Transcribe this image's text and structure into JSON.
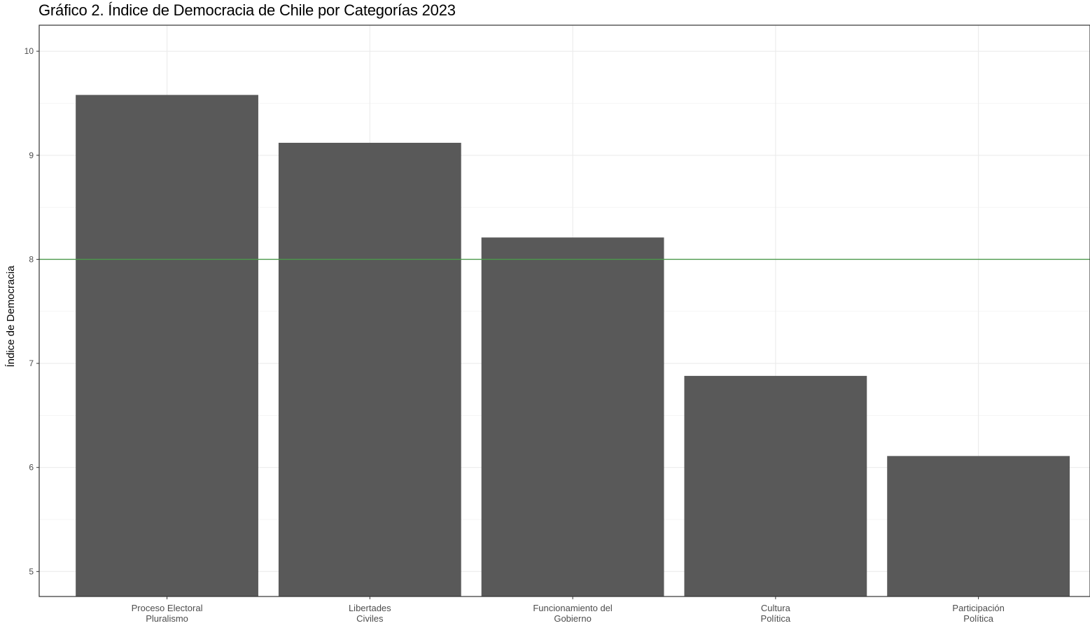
{
  "chart_data": {
    "type": "bar",
    "title": "Gráfico 2. Índice de Democracia de Chile por Categorías 2023",
    "xlabel": "",
    "ylabel": "Índice de Democracia",
    "categories": [
      [
        "Proceso Electoral",
        "Pluralismo"
      ],
      [
        "Libertades",
        "Civiles"
      ],
      [
        "Funcionamiento del",
        "Gobierno"
      ],
      [
        "Cultura",
        "Política"
      ],
      [
        "Participación",
        "Política"
      ]
    ],
    "values": [
      9.58,
      9.12,
      8.21,
      6.88,
      6.11
    ],
    "ylim": [
      4.76,
      10.25
    ],
    "yticks": [
      5,
      6,
      7,
      8,
      9,
      10
    ],
    "reference_line": {
      "y": 8,
      "color": "#4c9a4c"
    },
    "bar_color": "#595959",
    "grid": true,
    "legend": "none"
  }
}
